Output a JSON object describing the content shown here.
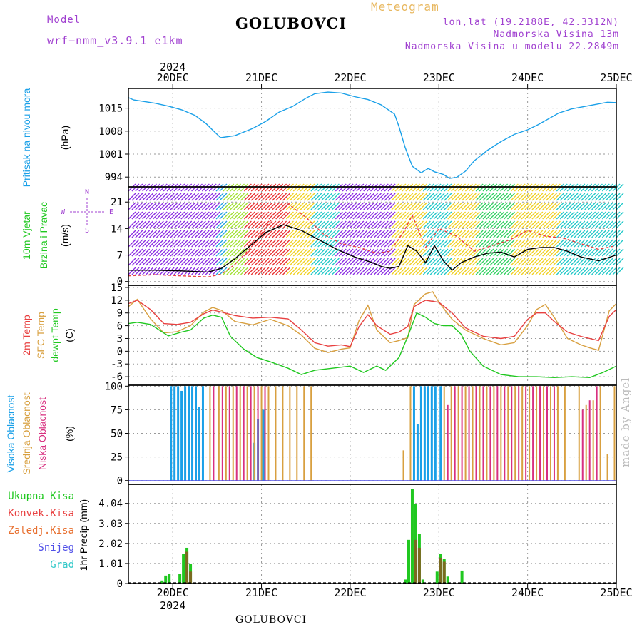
{
  "header": {
    "model_label": "Model",
    "model_name": "wrf−nmm_v3.9.1  e1km",
    "title": "GOLUBOVCI",
    "meteogram": "Meteogram",
    "lonlat": "lon,lat (19.2188E, 42.3312N)",
    "elevation": "Nadmorska Visina 13m",
    "model_elevation": "Nadmorska Visina u modelu 22.2849m"
  },
  "footer": {
    "station": "GOLUBOVCI",
    "made_by": "made by Angel"
  },
  "colors": {
    "pressure": "#1aa0e8",
    "wind_speed": "#000000",
    "temp2m": "#e84040",
    "sfc_temp": "#d8a040",
    "dewpoint": "#20c820",
    "cloud_high": "#1aa0e8",
    "cloud_mid": "#d8a040",
    "cloud_low": "#d83080",
    "precip_total": "#20c820",
    "precip_conv": "#e84040",
    "precip_frozen": "#e87030",
    "snow": "#5050e8",
    "hail": "#30c8c8",
    "purple": "#a040d0"
  },
  "chart_data": [
    {
      "id": "pressure",
      "type": "line",
      "ylabel": "Pritisak na nivou mora",
      "unit": "(hPa)",
      "yticks": [
        994,
        1001,
        1008,
        1015
      ],
      "ylim": [
        991,
        1021
      ],
      "x": [
        0,
        0.06,
        0.3,
        0.45,
        0.6,
        0.75,
        0.88,
        0.95,
        1.04,
        1.2,
        1.4,
        1.55,
        1.7,
        1.85,
        2.0,
        2.1,
        2.25,
        2.4,
        2.55,
        2.7,
        2.85,
        3.0,
        3.05,
        3.12,
        3.2,
        3.3,
        3.38,
        3.45,
        3.55,
        3.62,
        3.7,
        3.8,
        3.9,
        4.05,
        4.2,
        4.35,
        4.5,
        4.62,
        4.72,
        4.85,
        5.0,
        5.2,
        5.4,
        5.5
      ],
      "y": [
        1018.2,
        1017.5,
        1016.5,
        1015.6,
        1014.5,
        1012.8,
        1010.2,
        1008.3,
        1006.0,
        1006.6,
        1008.8,
        1011.0,
        1013.8,
        1015.5,
        1018.0,
        1019.4,
        1019.9,
        1019.6,
        1018.5,
        1017.6,
        1016.0,
        1013.2,
        1009.4,
        1003.0,
        997.3,
        995.3,
        996.6,
        995.6,
        994.8,
        993.6,
        993.9,
        995.8,
        999.0,
        1002.2,
        1004.8,
        1007.0,
        1008.4,
        1010.0,
        1011.5,
        1013.5,
        1014.8,
        1015.8,
        1016.8,
        1016.7
      ]
    },
    {
      "id": "wind",
      "type": "line",
      "ylabel": "10m Vjetar Brzina i Pravac",
      "unit": "(m/s)",
      "yticks": [
        0,
        7,
        14,
        21
      ],
      "ylim": [
        -1,
        25
      ],
      "compass": {
        "n": "N",
        "s": "S",
        "e": "E",
        "w": "W"
      },
      "series": [
        {
          "key": "speed",
          "x": [
            0,
            0.3,
            0.6,
            0.9,
            1.05,
            1.2,
            1.35,
            1.55,
            1.75,
            1.95,
            2.15,
            2.35,
            2.55,
            2.75,
            2.85,
            2.95,
            3.05,
            3.15,
            3.25,
            3.35,
            3.45,
            3.55,
            3.65,
            3.75,
            3.9,
            4.05,
            4.2,
            4.35,
            4.5,
            4.65,
            4.8,
            4.95,
            5.1,
            5.3,
            5.5
          ],
          "y": [
            3.0,
            3.0,
            2.8,
            2.5,
            3.5,
            6.0,
            9.0,
            13.0,
            15.0,
            13.5,
            11.0,
            8.5,
            6.5,
            5.0,
            4.0,
            3.5,
            4.0,
            9.5,
            8.0,
            5.0,
            9.5,
            5.5,
            3.0,
            5.0,
            6.5,
            7.5,
            7.8,
            6.5,
            8.5,
            9.0,
            9.0,
            8.0,
            6.5,
            5.5,
            7.0
          ]
        },
        {
          "key": "gust",
          "x": [
            0,
            0.3,
            0.6,
            0.9,
            1.05,
            1.2,
            1.4,
            1.6,
            1.8,
            2.0,
            2.2,
            2.4,
            2.6,
            2.8,
            2.95,
            3.1,
            3.2,
            3.35,
            3.5,
            3.7,
            3.9,
            4.1,
            4.3,
            4.5,
            4.7,
            4.9,
            5.1,
            5.3,
            5.5
          ],
          "y": [
            1.5,
            1.8,
            1.5,
            1.2,
            2.0,
            4.5,
            9.5,
            16.0,
            20.5,
            17.0,
            12.5,
            10.0,
            9.0,
            7.5,
            8.0,
            13.0,
            17.5,
            9.0,
            14.0,
            12.0,
            8.0,
            9.5,
            11.0,
            13.5,
            12.0,
            11.5,
            10.0,
            8.5,
            9.5
          ]
        }
      ]
    },
    {
      "id": "temperature",
      "type": "line",
      "ylabel": [
        "2m Temp",
        "SFC Temp",
        "dewpt Temp"
      ],
      "unit": "(C)",
      "yticks": [
        -6,
        -3,
        0,
        3,
        6,
        9,
        12,
        15
      ],
      "ylim": [
        -8,
        15.5
      ],
      "series": [
        {
          "name": "2m Temp",
          "key": "t2m",
          "x": [
            0,
            0.1,
            0.25,
            0.4,
            0.55,
            0.7,
            0.85,
            0.95,
            1.05,
            1.2,
            1.4,
            1.6,
            1.8,
            1.95,
            2.1,
            2.25,
            2.4,
            2.5,
            2.6,
            2.7,
            2.8,
            2.95,
            3.05,
            3.15,
            3.22,
            3.35,
            3.5,
            3.65,
            3.8,
            4.0,
            4.2,
            4.35,
            4.5,
            4.6,
            4.7,
            4.8,
            4.95,
            5.1,
            5.2,
            5.3,
            5.42,
            5.5
          ],
          "y": [
            11.2,
            12.0,
            9.8,
            6.5,
            6.3,
            6.8,
            8.8,
            9.7,
            9.2,
            8.4,
            7.8,
            8.0,
            7.6,
            5.0,
            2.0,
            1.2,
            1.5,
            1.1,
            5.8,
            8.6,
            6.0,
            4.0,
            4.5,
            5.8,
            10.5,
            12.0,
            11.5,
            9.0,
            5.5,
            3.5,
            3.0,
            3.5,
            7.5,
            9.0,
            9.0,
            7.0,
            4.5,
            3.5,
            3.0,
            2.5,
            8.2,
            9.8
          ]
        },
        {
          "name": "SFC Temp",
          "key": "sfc",
          "x": [
            0,
            0.1,
            0.25,
            0.4,
            0.55,
            0.7,
            0.85,
            0.95,
            1.05,
            1.2,
            1.4,
            1.6,
            1.8,
            1.95,
            2.1,
            2.25,
            2.4,
            2.5,
            2.6,
            2.7,
            2.8,
            2.95,
            3.05,
            3.15,
            3.22,
            3.35,
            3.43,
            3.5,
            3.65,
            3.8,
            4.0,
            4.2,
            4.35,
            4.5,
            4.6,
            4.7,
            4.8,
            4.95,
            5.1,
            5.2,
            5.3,
            5.42,
            5.5
          ],
          "y": [
            10.5,
            12.2,
            7.6,
            4.3,
            4.6,
            6.0,
            9.2,
            10.3,
            9.6,
            7.0,
            6.2,
            7.5,
            6.0,
            3.8,
            0.7,
            -0.3,
            0.5,
            0.8,
            7.2,
            10.8,
            5.0,
            2.0,
            2.5,
            3.2,
            11.0,
            13.5,
            14.0,
            11.5,
            7.5,
            5.0,
            3.0,
            1.5,
            2.0,
            6.0,
            9.8,
            11.0,
            8.0,
            3.0,
            1.5,
            0.8,
            0.2,
            9.5,
            11.2
          ]
        },
        {
          "name": "dewpt Temp",
          "key": "dew",
          "x": [
            0,
            0.1,
            0.25,
            0.45,
            0.6,
            0.7,
            0.85,
            0.95,
            1.05,
            1.15,
            1.3,
            1.45,
            1.6,
            1.8,
            1.95,
            2.1,
            2.3,
            2.5,
            2.65,
            2.8,
            2.9,
            3.05,
            3.15,
            3.25,
            3.35,
            3.45,
            3.55,
            3.65,
            3.75,
            3.85,
            4.0,
            4.2,
            4.4,
            4.6,
            4.8,
            5.0,
            5.2,
            5.35,
            5.5
          ],
          "y": [
            6.5,
            6.8,
            6.3,
            3.6,
            4.5,
            5.0,
            7.8,
            8.5,
            8.0,
            3.5,
            0.5,
            -1.5,
            -2.5,
            -4.0,
            -5.5,
            -4.5,
            -4.0,
            -3.5,
            -5.0,
            -3.5,
            -4.5,
            -1.5,
            3.5,
            9.0,
            8.0,
            6.5,
            6.0,
            6.0,
            4.0,
            0.0,
            -3.5,
            -5.5,
            -6.0,
            -6.0,
            -6.2,
            -6.0,
            -6.2,
            -5.0,
            -3.5
          ]
        }
      ]
    },
    {
      "id": "clouds",
      "type": "bar",
      "ylabel": [
        "Visoka Oblacnost",
        "Srednja Oblacnost",
        "Niska Oblacnost"
      ],
      "unit": "(%)",
      "yticks": [
        0,
        25,
        50,
        75,
        100
      ],
      "ylim": [
        -4,
        101
      ],
      "series": [
        {
          "name": "Visoka Oblacnost",
          "key": "high",
          "x": [
            0.48,
            0.52,
            0.56,
            0.6,
            0.64,
            0.68,
            0.72,
            0.76,
            0.8,
            0.84,
            1.42,
            1.46,
            1.52,
            3.22,
            3.26,
            3.3,
            3.34,
            3.38,
            3.42,
            3.46,
            3.52
          ],
          "y": [
            100,
            100,
            100,
            95,
            100,
            100,
            100,
            100,
            78,
            100,
            40,
            65,
            75,
            100,
            60,
            100,
            100,
            100,
            100,
            100,
            100
          ]
        },
        {
          "name": "Srednja Oblacnost",
          "key": "mid",
          "x": [
            0.92,
            1.02,
            1.1,
            1.18,
            1.26,
            1.34,
            1.42,
            1.5,
            1.58,
            1.66,
            1.74,
            1.82,
            1.9,
            1.98,
            2.06,
            3.1,
            3.18,
            3.56,
            3.64,
            3.72,
            3.8,
            3.88,
            3.96,
            4.04,
            4.12,
            4.2,
            4.28,
            4.36,
            4.44,
            4.52,
            4.6,
            4.68,
            4.76,
            4.84,
            4.92,
            5.08,
            5.16,
            5.24,
            5.32,
            5.4,
            5.48
          ],
          "y": [
            100,
            100,
            100,
            100,
            100,
            100,
            100,
            100,
            100,
            100,
            100,
            100,
            100,
            100,
            100,
            32,
            100,
            100,
            100,
            100,
            100,
            100,
            100,
            100,
            100,
            100,
            100,
            100,
            100,
            100,
            100,
            100,
            100,
            100,
            100,
            100,
            80,
            85,
            100,
            28,
            100
          ]
        },
        {
          "name": "Niska Oblacnost",
          "key": "low",
          "x": [
            0.96,
            1.06,
            1.14,
            1.22,
            1.3,
            1.38,
            1.46,
            1.54,
            3.6,
            3.68,
            3.76,
            3.84,
            3.92,
            4.0,
            4.08,
            4.16,
            4.24,
            4.32,
            4.4,
            4.48,
            4.56,
            4.64,
            4.72,
            4.8,
            5.12,
            5.2,
            5.28
          ],
          "y": [
            100,
            100,
            100,
            100,
            100,
            100,
            100,
            100,
            80,
            100,
            100,
            100,
            100,
            100,
            100,
            100,
            100,
            100,
            100,
            100,
            100,
            100,
            100,
            100,
            75,
            85,
            100
          ]
        }
      ]
    },
    {
      "id": "precip",
      "type": "bar",
      "ylabel": [
        "Ukupna Kisa",
        "Konvek.Kisa",
        "Zaledj.Kisa",
        "Snijeg",
        "Grad"
      ],
      "axis_title": "1hr Precip (mm)",
      "yticks": [
        0,
        1.01,
        2.02,
        3.03,
        4.04
      ],
      "ylim": [
        0,
        5
      ],
      "series": [
        {
          "name": "Ukupna Kisa",
          "key": "total",
          "x": [
            0.38,
            0.42,
            0.46,
            0.58,
            0.62,
            0.66,
            0.7,
            3.12,
            3.16,
            3.2,
            3.24,
            3.28,
            3.32,
            3.48,
            3.52,
            3.56,
            3.6,
            3.76
          ],
          "y": [
            0.15,
            0.4,
            0.5,
            0.5,
            1.5,
            1.8,
            1.0,
            0.2,
            2.2,
            4.75,
            4.0,
            2.5,
            0.2,
            0.6,
            1.5,
            1.25,
            0.35,
            0.65
          ]
        },
        {
          "name": "Konvek.Kisa",
          "key": "conv",
          "x": [
            0.66,
            0.7,
            3.24,
            3.28,
            3.52,
            3.56
          ],
          "y": [
            1.6,
            0.6,
            2.2,
            1.8,
            1.3,
            1.1
          ]
        }
      ]
    }
  ],
  "x_axis": {
    "days": [
      "20DEC",
      "21DEC",
      "22DEC",
      "23DEC",
      "24DEC",
      "25DEC"
    ],
    "day_offsets": [
      0.5,
      1.5,
      2.5,
      3.5,
      4.5,
      5.5
    ],
    "year": "2024"
  }
}
